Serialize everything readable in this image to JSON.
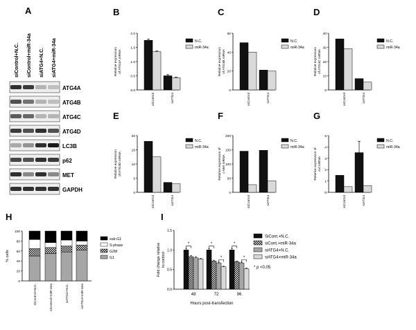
{
  "panels": {
    "A": "A",
    "B": "B",
    "C": "C",
    "D": "D",
    "E": "E",
    "F": "F",
    "G": "G",
    "H": "H",
    "I": "I"
  },
  "blot": {
    "lanes": [
      "siControl+N.C.",
      "siControl+miR-34a",
      "siATG4+N.C.",
      "siATG4+miR-34a"
    ],
    "proteins": [
      "ATG4A",
      "ATG4B",
      "ATG4C",
      "ATG4D",
      "LC3B",
      "p62",
      "MET",
      "GAPDH"
    ],
    "band_intensity": [
      [
        0.85,
        0.8,
        0.25,
        0.2
      ],
      [
        0.7,
        0.55,
        0.25,
        0.2
      ],
      [
        0.65,
        0.6,
        0.25,
        0.25
      ],
      [
        0.8,
        0.7,
        0.85,
        0.7
      ],
      [
        0.3,
        0.4,
        0.85,
        0.95
      ],
      [
        0.75,
        0.7,
        0.85,
        0.8
      ],
      [
        0.85,
        0.45,
        0.85,
        0.45
      ],
      [
        0.85,
        0.85,
        0.85,
        0.85
      ]
    ]
  },
  "colors": {
    "nc": "#111111",
    "mir": "#d9d9d9",
    "g1": "#a6a6a6",
    "sphase": "#ffffff",
    "subg1": "#000000"
  },
  "chart_data": [
    {
      "panel": "B",
      "type": "bar",
      "categories": [
        "siControl",
        "siATG4"
      ],
      "series": [
        {
          "name": "N.C.",
          "values": [
            1.75,
            0.5
          ],
          "errors": [
            0.04,
            0.04
          ]
        },
        {
          "name": "miR-34a",
          "values": [
            1.35,
            0.43
          ],
          "errors": [
            0.02,
            0.02
          ]
        }
      ],
      "ylabel": "Relative expression\nof ATG4A mRNA",
      "yticks": [
        0.0,
        0.5,
        1.0,
        1.5,
        2.0
      ],
      "ylim": [
        0,
        2.0
      ]
    },
    {
      "panel": "C",
      "type": "bar",
      "categories": [
        "siControl",
        "siATG4"
      ],
      "series": [
        {
          "name": "N.C.",
          "values": [
            50,
            21
          ]
        },
        {
          "name": "miR-34a",
          "values": [
            40,
            20
          ]
        }
      ],
      "ylabel": "Relative expression\nof ATG4B mRNA",
      "yticks": [
        0,
        20,
        40,
        60
      ],
      "ylim": [
        0,
        60
      ]
    },
    {
      "panel": "D",
      "type": "bar",
      "categories": [
        "siControl",
        "siATG4"
      ],
      "series": [
        {
          "name": "N.C.",
          "values": [
            36,
            8
          ]
        },
        {
          "name": "miR-34a",
          "values": [
            29,
            5.5
          ]
        }
      ],
      "ylabel": "Relative expression\nof ATG4C mRNA",
      "yticks": [
        0,
        10,
        20,
        30,
        40
      ],
      "ylim": [
        0,
        40
      ]
    },
    {
      "panel": "E",
      "type": "bar",
      "categories": [
        "siControl",
        "siATG4"
      ],
      "series": [
        {
          "name": "N.C.",
          "values": [
            18,
            3.5
          ]
        },
        {
          "name": "miR-34a",
          "values": [
            12.5,
            3
          ]
        }
      ],
      "ylabel": "Relative expression\nof ATG4D mRNA",
      "yticks": [
        0,
        5,
        10,
        15,
        20
      ],
      "ylim": [
        0,
        20
      ]
    },
    {
      "panel": "F",
      "type": "bar",
      "categories": [
        "siControl",
        "siATG4"
      ],
      "series": [
        {
          "name": "N.C.",
          "values": [
            145,
            148
          ]
        },
        {
          "name": "miR-34a",
          "values": [
            27,
            40
          ]
        }
      ],
      "ylabel": "Relative expression of\nc-Met mRNA",
      "yticks": [
        0,
        50,
        100,
        150,
        200
      ],
      "ylim": [
        0,
        200
      ]
    },
    {
      "panel": "G",
      "type": "bar",
      "categories": [
        "siControl",
        "siATG4"
      ],
      "series": [
        {
          "name": "N.C.",
          "values": [
            1.5,
            3.5
          ],
          "errors": [
            0,
            1.0
          ]
        },
        {
          "name": "miR-34a",
          "values": [
            0.5,
            0.6
          ]
        }
      ],
      "ylabel": "Relative expression of\nAxl mRNA",
      "yticks": [
        0,
        1,
        2,
        3,
        4,
        5
      ],
      "ylim": [
        0,
        5
      ]
    },
    {
      "panel": "H",
      "type": "bar",
      "stacked": true,
      "categories": [
        "siControl+N.C.",
        "siControl+miR-34a",
        "siATG4+N.C.",
        "siATG4+miR-34a"
      ],
      "series": [
        {
          "name": "G1",
          "values": [
            50,
            55,
            58,
            62
          ]
        },
        {
          "name": "G2M",
          "values": [
            15,
            12,
            12,
            10
          ]
        },
        {
          "name": "S-phase",
          "values": [
            18,
            10,
            12,
            8
          ]
        },
        {
          "name": "sub-G1",
          "values": [
            17,
            23,
            18,
            20
          ]
        }
      ],
      "ylabel": "% cells",
      "yticks": [
        0,
        20,
        40,
        60,
        80,
        100
      ],
      "ylim": [
        0,
        100
      ]
    },
    {
      "panel": "I",
      "type": "bar",
      "categories": [
        "48",
        "72",
        "96"
      ],
      "series": [
        {
          "name": "SiCont.+N.C.",
          "values": [
            1.0,
            1.0,
            1.0
          ],
          "errors": [
            0.04,
            0.04,
            0.04
          ]
        },
        {
          "name": "siCont.+miR-34a",
          "values": [
            0.83,
            0.72,
            0.7
          ],
          "errors": [
            0.03,
            0.02,
            0.02
          ]
        },
        {
          "name": "siATG4+N.C.",
          "values": [
            0.8,
            0.67,
            0.67
          ],
          "errors": [
            0.03,
            0.02,
            0.02
          ]
        },
        {
          "name": "siATG4+miR-34a",
          "values": [
            0.77,
            0.57,
            0.52
          ],
          "errors": [
            0.02,
            0.02,
            0.02
          ]
        }
      ],
      "xlabel": "Hours post-transfection",
      "ylabel": "Fold change relative\nto control",
      "yticks": [
        0.0,
        0.5,
        1.0,
        1.5
      ],
      "ylim": [
        0,
        1.5
      ],
      "annotation": "* p <0.05"
    }
  ]
}
